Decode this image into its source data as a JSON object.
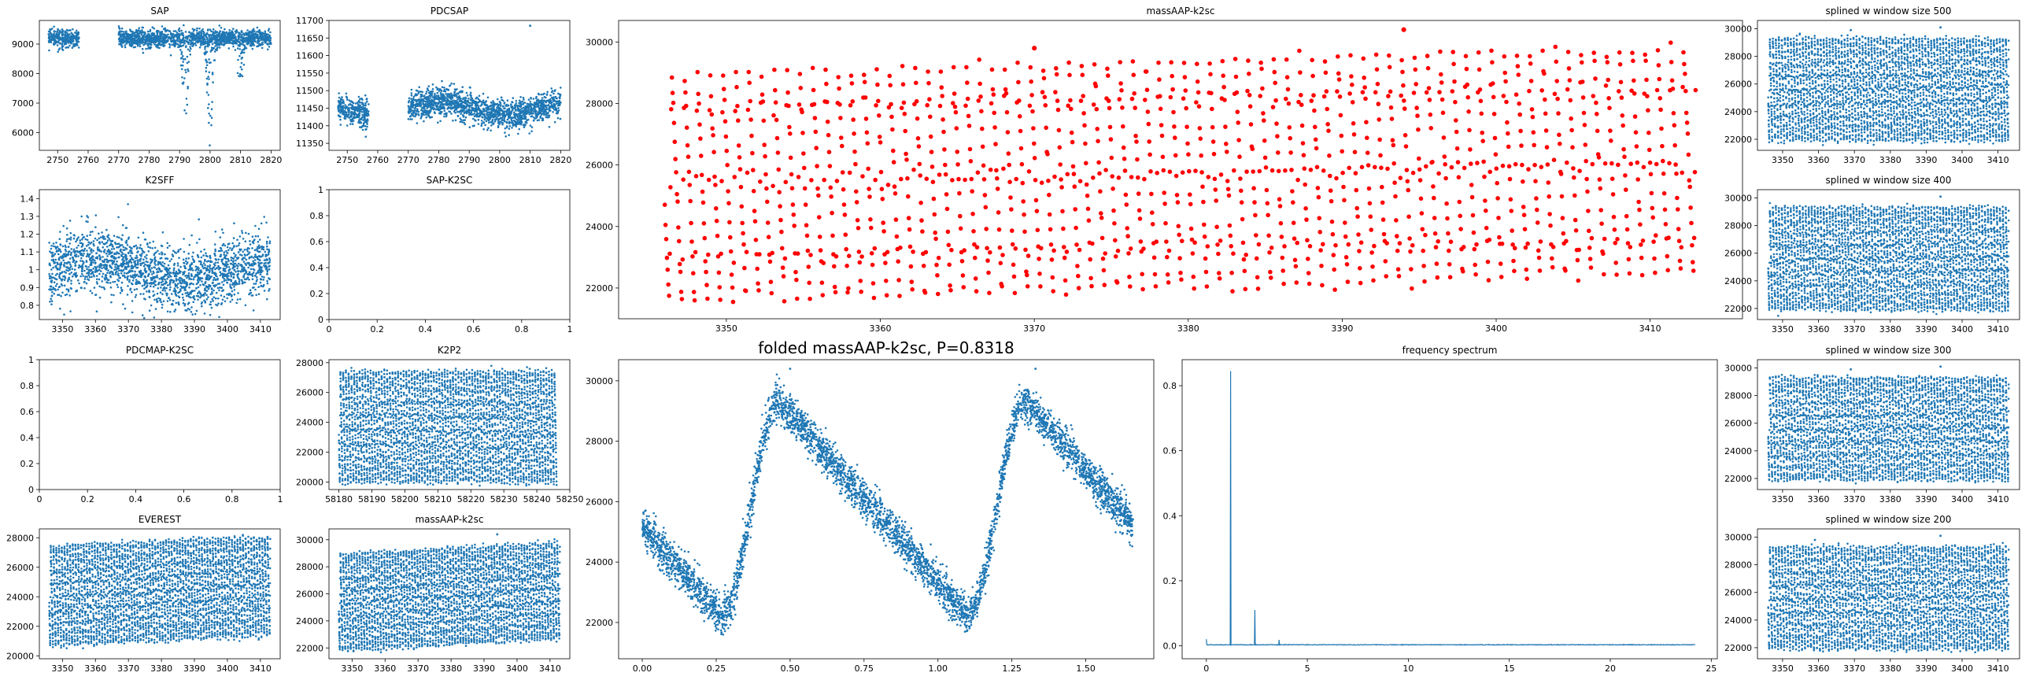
{
  "figure": {
    "background": "#ffffff",
    "point_color": "#1f77b4",
    "highlight_color": "#ff0000"
  },
  "chart_data": [
    {
      "id": "sap",
      "type": "scatter",
      "title": "SAP",
      "xlim": [
        2744,
        2823
      ],
      "ylim": [
        5400,
        9800
      ],
      "xticks": [
        2750,
        2760,
        2770,
        2780,
        2790,
        2800,
        2810,
        2820
      ],
      "yticks": [
        6000,
        7000,
        8000,
        9000
      ],
      "segments": [
        [
          2747,
          2757
        ],
        [
          2770,
          2820
        ]
      ],
      "base": 9200,
      "noise": 150,
      "dips": [
        {
          "x": 2792,
          "depth": 3400
        },
        {
          "x": 2800,
          "depth": 3500
        },
        {
          "x": 2810,
          "depth": 1500
        }
      ],
      "color": "#1f77b4",
      "marker_size": 1.3
    },
    {
      "id": "pdcsap",
      "type": "scatter",
      "title": "PDCSAP",
      "xlim": [
        2744,
        2823
      ],
      "ylim": [
        11330,
        11700
      ],
      "xticks": [
        2750,
        2760,
        2770,
        2780,
        2790,
        2800,
        2810,
        2820
      ],
      "yticks": [
        11350,
        11400,
        11450,
        11500,
        11550,
        11600,
        11650,
        11700
      ],
      "segments": [
        [
          2747,
          2757
        ],
        [
          2770,
          2820
        ]
      ],
      "base": 11450,
      "noise": 20,
      "outliers": [
        {
          "x": 2810,
          "y": 11685
        }
      ],
      "color": "#1f77b4",
      "marker_size": 1.3
    },
    {
      "id": "k2sff",
      "type": "scatter",
      "title": "K2SFF",
      "xlim": [
        3343,
        3416
      ],
      "ylim": [
        0.72,
        1.45
      ],
      "xticks": [
        3350,
        3360,
        3370,
        3380,
        3390,
        3400,
        3410
      ],
      "yticks": [
        0.8,
        0.9,
        1.0,
        1.1,
        1.2,
        1.3,
        1.4
      ],
      "segments": [
        [
          3346,
          3413
        ]
      ],
      "base": 1.0,
      "noise": 0.09,
      "color": "#1f77b4",
      "marker_size": 1.3
    },
    {
      "id": "sap_k2sc",
      "type": "empty",
      "title": "SAP-K2SC",
      "xlim": [
        0,
        1
      ],
      "ylim": [
        0,
        1
      ],
      "xticks": [
        0.0,
        0.2,
        0.4,
        0.6,
        0.8,
        1.0
      ],
      "yticks": [
        0.0,
        0.2,
        0.4,
        0.6,
        0.8,
        1.0
      ]
    },
    {
      "id": "pdcmap_k2sc",
      "type": "empty",
      "title": "PDCMAP-K2SC",
      "xlim": [
        0,
        1
      ],
      "ylim": [
        0,
        1
      ],
      "xticks": [
        0.0,
        0.2,
        0.4,
        0.6,
        0.8,
        1.0
      ],
      "yticks": [
        0.0,
        0.2,
        0.4,
        0.6,
        0.8,
        1.0
      ]
    },
    {
      "id": "k2p2",
      "type": "scatter",
      "title": "K2P2",
      "xlim": [
        58177,
        58250
      ],
      "ylim": [
        19500,
        28200
      ],
      "xticks": [
        58180,
        58190,
        58200,
        58210,
        58220,
        58230,
        58240,
        58250
      ],
      "yticks": [
        20000,
        22000,
        24000,
        26000,
        28000
      ],
      "segments": [
        [
          58180,
          58246
        ]
      ],
      "period": 0.8318,
      "amp_low": 20000,
      "amp_high": 27400,
      "trend": 0,
      "color": "#1f77b4",
      "marker_size": 1.3
    },
    {
      "id": "everest",
      "type": "scatter",
      "title": "EVEREST",
      "xlim": [
        3343,
        3416
      ],
      "ylim": [
        19800,
        28600
      ],
      "xticks": [
        3350,
        3360,
        3370,
        3380,
        3390,
        3400,
        3410
      ],
      "yticks": [
        20000,
        22000,
        24000,
        26000,
        28000
      ],
      "segments": [
        [
          3346,
          3413
        ]
      ],
      "period": 0.8318,
      "amp_low": 20700,
      "amp_high": 27400,
      "trend": 700,
      "color": "#1f77b4",
      "marker_size": 1.3
    },
    {
      "id": "massaap_small",
      "type": "scatter",
      "title": "massAAP-k2sc",
      "xlim": [
        3343,
        3416
      ],
      "ylim": [
        21200,
        30800
      ],
      "xticks": [
        3350,
        3360,
        3370,
        3380,
        3390,
        3400,
        3410
      ],
      "yticks": [
        22000,
        24000,
        26000,
        28000,
        30000
      ],
      "segments": [
        [
          3346,
          3413
        ]
      ],
      "period": 0.8318,
      "amp_low": 21800,
      "amp_high": 28900,
      "trend": 900,
      "outliers": [
        {
          "x": 3394,
          "y": 30400
        }
      ],
      "color": "#1f77b4",
      "marker_size": 1.3
    },
    {
      "id": "massaap_main",
      "type": "scatter",
      "title": "massAAP-k2sc",
      "xlim": [
        3343,
        3416
      ],
      "ylim": [
        21000,
        30700
      ],
      "xticks": [
        3350,
        3360,
        3370,
        3380,
        3390,
        3400,
        3410
      ],
      "yticks": [
        22000,
        24000,
        26000,
        28000,
        30000
      ],
      "segments": [
        [
          3346,
          3413
        ]
      ],
      "period": 0.8318,
      "amp_low": 21600,
      "amp_high": 28900,
      "trend": 900,
      "samples_per_cycle": 18,
      "outliers": [
        {
          "x": 3394,
          "y": 30400
        },
        {
          "x": 3370,
          "y": 29800
        }
      ],
      "color": "#ff0000",
      "marker_size": 2.8
    },
    {
      "id": "folded",
      "type": "scatter",
      "title": "folded massAAP-k2sc, P=0.8318",
      "title_size": 20,
      "xlim": [
        -0.08,
        1.73
      ],
      "ylim": [
        20800,
        30700
      ],
      "xticks": [
        0.0,
        0.25,
        0.5,
        0.75,
        1.0,
        1.25,
        1.5
      ],
      "xtick_labels": [
        "0.00",
        "0.25",
        "0.50",
        "0.75",
        "1.00",
        "1.25",
        "1.50"
      ],
      "yticks": [
        22000,
        24000,
        26000,
        28000,
        30000
      ],
      "folded": true,
      "phase_min": 0.32,
      "phase_max": 0.56,
      "low": 22200,
      "high": 29300,
      "scatter_width": 900,
      "outliers": [
        {
          "x": 0.5,
          "y": 30400
        },
        {
          "x": 1.33,
          "y": 30400
        }
      ],
      "color": "#1f77b4",
      "marker_size": 1.3
    },
    {
      "id": "freq",
      "type": "line",
      "title": "frequency spectrum",
      "xlim": [
        -1.2,
        25.3
      ],
      "ylim": [
        -0.04,
        0.88
      ],
      "xticks": [
        0,
        5,
        10,
        15,
        20,
        25
      ],
      "yticks": [
        0.0,
        0.2,
        0.4,
        0.6,
        0.8
      ],
      "ytick_labels": [
        "0.0",
        "0.2",
        "0.4",
        "0.6",
        "0.8"
      ],
      "x_end": 24.2,
      "peaks": [
        {
          "x": 1.202,
          "y": 0.845
        },
        {
          "x": 2.404,
          "y": 0.11
        },
        {
          "x": 3.606,
          "y": 0.018
        },
        {
          "x": 0.0,
          "y": 0.02
        }
      ],
      "color": "#1f77b4"
    },
    {
      "id": "spline500",
      "type": "scatter",
      "title": "splined w window size 500",
      "xlim": [
        3343,
        3416
      ],
      "ylim": [
        21200,
        30600
      ],
      "xticks": [
        3350,
        3360,
        3370,
        3380,
        3390,
        3400,
        3410
      ],
      "yticks": [
        22000,
        24000,
        26000,
        28000,
        30000
      ],
      "segments": [
        [
          3346,
          3413
        ]
      ],
      "period": 0.8318,
      "amp_low": 21900,
      "amp_high": 29300,
      "trend": 0,
      "outliers": [
        {
          "x": 3394,
          "y": 30100
        },
        {
          "x": 3369,
          "y": 29900
        }
      ],
      "color": "#1f77b4",
      "marker_size": 1.3
    },
    {
      "id": "spline400",
      "type": "scatter",
      "title": "splined w window size 400",
      "xlim": [
        3343,
        3416
      ],
      "ylim": [
        21200,
        30600
      ],
      "xticks": [
        3350,
        3360,
        3370,
        3380,
        3390,
        3400,
        3410
      ],
      "yticks": [
        22000,
        24000,
        26000,
        28000,
        30000
      ],
      "segments": [
        [
          3346,
          3413
        ]
      ],
      "period": 0.8318,
      "amp_low": 21900,
      "amp_high": 29300,
      "trend": 0,
      "outliers": [
        {
          "x": 3394,
          "y": 30100
        }
      ],
      "color": "#1f77b4",
      "marker_size": 1.3
    },
    {
      "id": "spline300",
      "type": "scatter",
      "title": "splined w window size 300",
      "xlim": [
        3343,
        3416
      ],
      "ylim": [
        21200,
        30600
      ],
      "xticks": [
        3350,
        3360,
        3370,
        3380,
        3390,
        3400,
        3410
      ],
      "yticks": [
        22000,
        24000,
        26000,
        28000,
        30000
      ],
      "segments": [
        [
          3346,
          3413
        ]
      ],
      "period": 0.8318,
      "amp_low": 21900,
      "amp_high": 29300,
      "trend": 0,
      "outliers": [
        {
          "x": 3394,
          "y": 30100
        },
        {
          "x": 3369,
          "y": 29900
        }
      ],
      "color": "#1f77b4",
      "marker_size": 1.3
    },
    {
      "id": "spline200",
      "type": "scatter",
      "title": "splined w window size 200",
      "xlim": [
        3343,
        3416
      ],
      "ylim": [
        21200,
        30600
      ],
      "xticks": [
        3350,
        3360,
        3370,
        3380,
        3390,
        3400,
        3410
      ],
      "yticks": [
        22000,
        24000,
        26000,
        28000,
        30000
      ],
      "segments": [
        [
          3346,
          3413
        ]
      ],
      "period": 0.8318,
      "amp_low": 21900,
      "amp_high": 29300,
      "trend": 0,
      "outliers": [
        {
          "x": 3394,
          "y": 30100
        },
        {
          "x": 3359,
          "y": 29800
        }
      ],
      "color": "#1f77b4",
      "marker_size": 1.3
    }
  ]
}
